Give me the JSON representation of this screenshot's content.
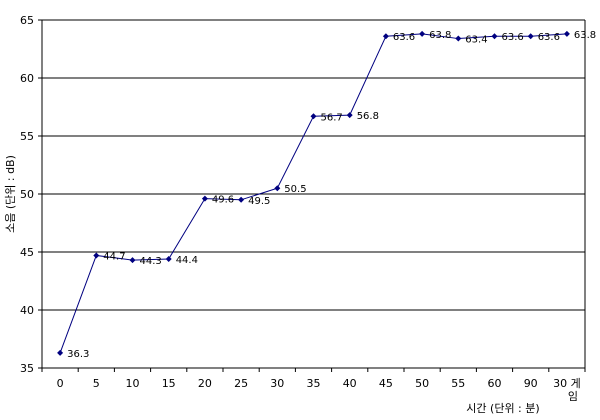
{
  "chart_data": {
    "type": "line",
    "title": "",
    "xlabel": "시간 (단위 : 분)",
    "ylabel": "소음 (단위 : dB)",
    "categories": [
      "0",
      "5",
      "10",
      "15",
      "20",
      "25",
      "30",
      "35",
      "40",
      "45",
      "50",
      "55",
      "60",
      "90",
      "30 게임"
    ],
    "series": [
      {
        "values": [
          36.3,
          44.7,
          44.3,
          44.4,
          49.6,
          49.5,
          50.5,
          56.7,
          56.8,
          63.6,
          63.8,
          63.4,
          63.6,
          63.6,
          63.8
        ],
        "labels": [
          "36.3",
          "44.7",
          "44.3",
          "44.4",
          "49.6",
          "49.5",
          "50.5",
          "56.7",
          "56.8",
          "63.6",
          "63.8",
          "63.4",
          "63.6",
          "63.6",
          "63.8"
        ],
        "color": "#000080"
      }
    ],
    "ylim": [
      35,
      65
    ],
    "yticks": [
      35,
      40,
      45,
      50,
      55,
      60,
      65
    ],
    "grid": "horizontal",
    "legend": "none"
  }
}
